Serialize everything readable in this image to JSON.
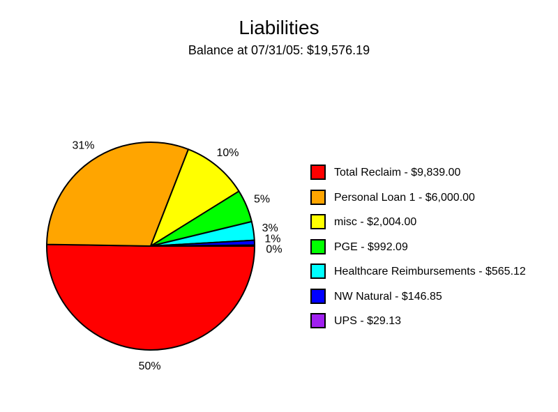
{
  "chart_data": {
    "type": "pie",
    "title": "Liabilities",
    "subtitle": "Balance at 07/31/05: $19,576.19",
    "slices": [
      {
        "name": "Total Reclaim",
        "value": 9839.0,
        "percent_label": "50%",
        "color": "#ff0000",
        "legend": "Total Reclaim - $9,839.00"
      },
      {
        "name": "Personal Loan 1",
        "value": 6000.0,
        "percent_label": "31%",
        "color": "#ffa500",
        "legend": "Personal Loan 1 - $6,000.00"
      },
      {
        "name": "misc",
        "value": 2004.0,
        "percent_label": "10%",
        "color": "#ffff00",
        "legend": "misc - $2,004.00"
      },
      {
        "name": "PGE",
        "value": 992.09,
        "percent_label": "5%",
        "color": "#00ff00",
        "legend": "PGE - $992.09"
      },
      {
        "name": "Healthcare Reimbursements",
        "value": 565.12,
        "percent_label": "3%",
        "color": "#00ffff",
        "legend": "Healthcare Reimbursements - $565.12"
      },
      {
        "name": "NW Natural",
        "value": 146.85,
        "percent_label": "1%",
        "color": "#0000ff",
        "legend": "NW Natural - $146.85"
      },
      {
        "name": "UPS",
        "value": 29.13,
        "percent_label": "0%",
        "color": "#a020f0",
        "legend": "UPS - $29.13"
      }
    ],
    "legend_position": "right"
  }
}
